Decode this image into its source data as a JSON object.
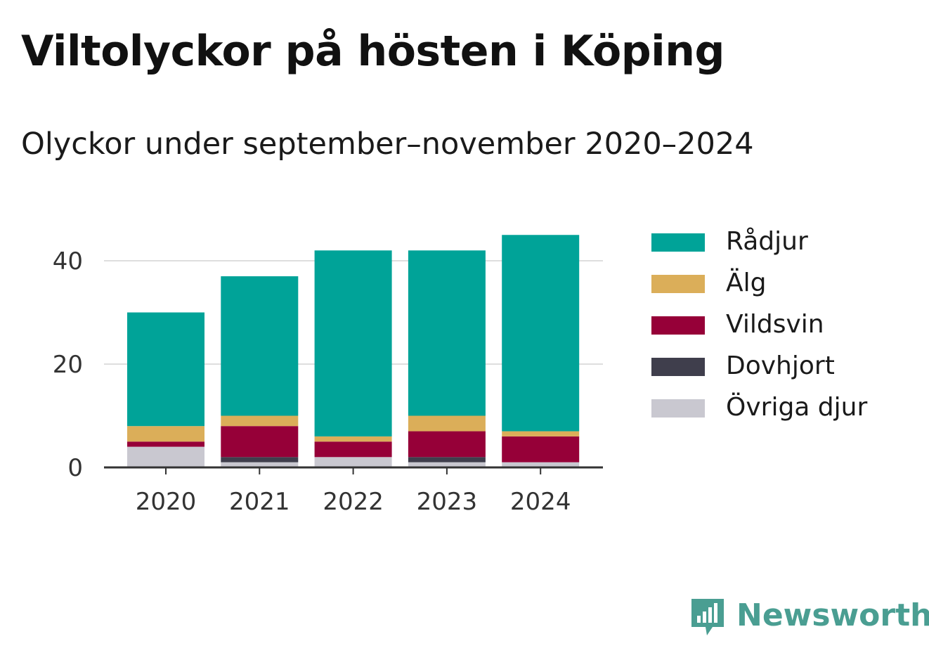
{
  "title": "Viltolyckor på hösten i Köping",
  "subtitle": "Olyckor under september–november 2020–2024",
  "brand": {
    "name": "Newsworthy",
    "color": "#4a9e92",
    "icon": "bar-chart-speech-bubble-icon"
  },
  "chart_data": {
    "type": "bar",
    "stacked": true,
    "title": "Viltolyckor på hösten i Köping",
    "subtitle": "Olyckor under september–november 2020–2024",
    "xlabel": "",
    "ylabel": "",
    "categories": [
      "2020",
      "2021",
      "2022",
      "2023",
      "2024"
    ],
    "y_ticks": [
      0,
      20,
      40
    ],
    "ylim": [
      0,
      46
    ],
    "grid": true,
    "legend_position": "right",
    "series": [
      {
        "name": "Övriga djur",
        "color": "#c9c8d0",
        "values": [
          4,
          1,
          2,
          1,
          1
        ]
      },
      {
        "name": "Dovhjort",
        "color": "#3f3e4c",
        "values": [
          0,
          1,
          0,
          1,
          0
        ]
      },
      {
        "name": "Vildsvin",
        "color": "#960038",
        "values": [
          1,
          6,
          3,
          5,
          5
        ]
      },
      {
        "name": "Älg",
        "color": "#dbae59",
        "values": [
          3,
          2,
          1,
          3,
          1
        ]
      },
      {
        "name": "Rådjur",
        "color": "#00a398",
        "values": [
          22,
          27,
          36,
          32,
          38
        ]
      }
    ],
    "legend_order": [
      "Rådjur",
      "Älg",
      "Vildsvin",
      "Dovhjort",
      "Övriga djur"
    ]
  }
}
